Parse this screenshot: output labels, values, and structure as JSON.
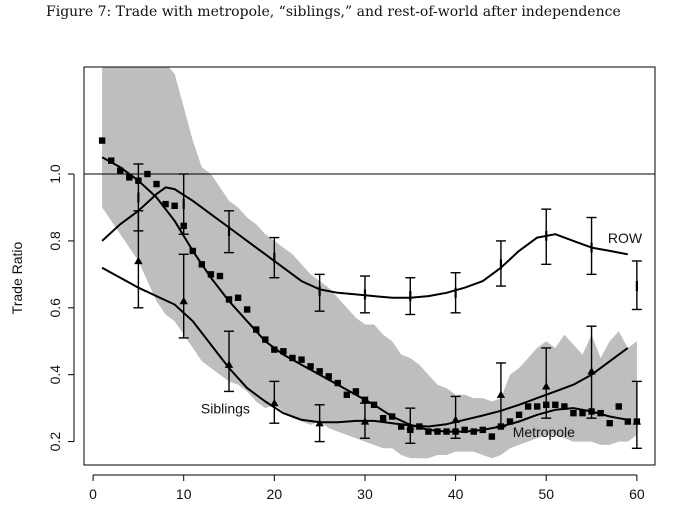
{
  "title": "Figure 7: Trade with metropole, “siblings,” and rest-of-world after independence",
  "chart_data": {
    "type": "line",
    "title": "Figure 7: Trade with metropole, “siblings,” and rest-of-world after independence",
    "xlabel": "",
    "ylabel": "Trade Ratio",
    "xlim": [
      -1,
      62
    ],
    "ylim": [
      0.13,
      1.32
    ],
    "x_ticks": [
      0,
      10,
      20,
      30,
      40,
      50,
      60
    ],
    "y_ticks": [
      0.2,
      0.4,
      0.6,
      0.8,
      1.0
    ],
    "x_tick_labels": [
      "0",
      "10",
      "20",
      "30",
      "40",
      "50",
      "60"
    ],
    "y_tick_labels": [
      "0.2",
      "0.4",
      "0.6",
      "0.8",
      "1.0"
    ],
    "reference_line_y": 1.0,
    "grid": false,
    "band": {
      "color": "#bebebe",
      "x": [
        1,
        2,
        3,
        4,
        5,
        6,
        7,
        8,
        9,
        10,
        11,
        12,
        13,
        14,
        15,
        16,
        17,
        18,
        19,
        20,
        21,
        22,
        23,
        24,
        25,
        26,
        27,
        28,
        29,
        30,
        31,
        32,
        33,
        34,
        35,
        36,
        37,
        38,
        39,
        40,
        41,
        42,
        43,
        44,
        45,
        46,
        47,
        48,
        49,
        50,
        51,
        52,
        53,
        54,
        55,
        56,
        57,
        58,
        59,
        60
      ],
      "upper": [
        1.33,
        1.33,
        1.33,
        1.33,
        1.33,
        1.33,
        1.33,
        1.33,
        1.3,
        1.2,
        1.1,
        1.02,
        1.0,
        0.96,
        0.92,
        0.9,
        0.87,
        0.85,
        0.82,
        0.8,
        0.78,
        0.76,
        0.73,
        0.7,
        0.68,
        0.66,
        0.63,
        0.6,
        0.57,
        0.55,
        0.55,
        0.52,
        0.5,
        0.46,
        0.45,
        0.43,
        0.4,
        0.37,
        0.36,
        0.34,
        0.34,
        0.33,
        0.33,
        0.32,
        0.33,
        0.4,
        0.42,
        0.45,
        0.48,
        0.5,
        0.48,
        0.52,
        0.49,
        0.46,
        0.52,
        0.45,
        0.5,
        0.53,
        0.48,
        0.5
      ],
      "lower": [
        0.9,
        0.86,
        0.82,
        0.78,
        0.74,
        0.68,
        0.62,
        0.58,
        0.56,
        0.52,
        0.48,
        0.44,
        0.42,
        0.4,
        0.38,
        0.37,
        0.35,
        0.32,
        0.3,
        0.31,
        0.29,
        0.27,
        0.26,
        0.25,
        0.26,
        0.24,
        0.23,
        0.22,
        0.21,
        0.2,
        0.19,
        0.18,
        0.18,
        0.16,
        0.15,
        0.15,
        0.15,
        0.16,
        0.16,
        0.17,
        0.17,
        0.17,
        0.16,
        0.15,
        0.16,
        0.18,
        0.19,
        0.2,
        0.21,
        0.22,
        0.22,
        0.21,
        0.2,
        0.2,
        0.2,
        0.19,
        0.19,
        0.2,
        0.2,
        0.22
      ]
    },
    "series": [
      {
        "name": "Metropole",
        "style": "square-markers",
        "x": [
          1,
          2,
          3,
          4,
          5,
          6,
          7,
          8,
          9,
          10,
          11,
          12,
          13,
          14,
          15,
          16,
          17,
          18,
          19,
          20,
          21,
          22,
          23,
          24,
          25,
          26,
          27,
          28,
          29,
          30,
          31,
          32,
          33,
          34,
          35,
          36,
          37,
          38,
          39,
          40,
          41,
          42,
          43,
          44,
          45,
          46,
          47,
          48,
          49,
          50,
          51,
          52,
          53,
          54,
          55,
          56,
          57,
          58,
          59,
          60
        ],
        "values": [
          1.1,
          1.04,
          1.01,
          0.99,
          0.98,
          1.0,
          0.97,
          0.91,
          0.905,
          0.845,
          0.77,
          0.73,
          0.7,
          0.695,
          0.625,
          0.63,
          0.595,
          0.535,
          0.505,
          0.475,
          0.47,
          0.45,
          0.445,
          0.425,
          0.41,
          0.395,
          0.375,
          0.34,
          0.35,
          0.325,
          0.31,
          0.27,
          0.275,
          0.245,
          0.235,
          0.245,
          0.23,
          0.23,
          0.23,
          0.23,
          0.235,
          0.23,
          0.235,
          0.215,
          0.245,
          0.26,
          0.28,
          0.305,
          0.305,
          0.31,
          0.31,
          0.305,
          0.285,
          0.285,
          0.29,
          0.285,
          0.255,
          0.305,
          0.26,
          0.26
        ]
      },
      {
        "name": "Metropole",
        "style": "smooth-line",
        "x": [
          1,
          3,
          5,
          7,
          9,
          11,
          13,
          15,
          17,
          19,
          21,
          23,
          25,
          27,
          29,
          31,
          33,
          35,
          37,
          39,
          41,
          43,
          45,
          47,
          49,
          51,
          53,
          55,
          57,
          59
        ],
        "values": [
          1.05,
          1.02,
          0.98,
          0.93,
          0.86,
          0.77,
          0.69,
          0.62,
          0.56,
          0.5,
          0.46,
          0.43,
          0.4,
          0.37,
          0.34,
          0.31,
          0.275,
          0.25,
          0.235,
          0.23,
          0.23,
          0.235,
          0.245,
          0.26,
          0.28,
          0.295,
          0.3,
          0.29,
          0.275,
          0.265
        ]
      },
      {
        "name": "Siblings",
        "style": "smooth-line",
        "x": [
          1,
          3,
          5,
          7,
          9,
          11,
          13,
          15,
          17,
          19,
          21,
          23,
          25,
          27,
          29,
          31,
          33,
          35,
          37,
          39,
          41,
          43,
          45,
          47,
          49,
          51,
          53,
          55,
          57,
          59
        ],
        "values": [
          0.72,
          0.69,
          0.66,
          0.635,
          0.61,
          0.56,
          0.49,
          0.42,
          0.36,
          0.32,
          0.285,
          0.265,
          0.258,
          0.258,
          0.262,
          0.262,
          0.255,
          0.248,
          0.245,
          0.252,
          0.265,
          0.278,
          0.292,
          0.31,
          0.33,
          0.35,
          0.37,
          0.4,
          0.44,
          0.48
        ]
      },
      {
        "name": "ROW",
        "style": "smooth-line",
        "x": [
          1,
          3,
          5,
          7,
          8,
          9,
          11,
          13,
          15,
          17,
          19,
          21,
          23,
          25,
          27,
          29,
          31,
          33,
          35,
          37,
          39,
          41,
          43,
          45,
          47,
          49,
          51,
          53,
          55,
          57,
          59
        ],
        "values": [
          0.8,
          0.85,
          0.89,
          0.94,
          0.96,
          0.955,
          0.92,
          0.88,
          0.84,
          0.8,
          0.76,
          0.72,
          0.68,
          0.655,
          0.645,
          0.64,
          0.635,
          0.63,
          0.63,
          0.635,
          0.645,
          0.66,
          0.68,
          0.72,
          0.77,
          0.81,
          0.82,
          0.8,
          0.78,
          0.77,
          0.76
        ]
      }
    ],
    "error_bars": [
      {
        "name": "ROW",
        "marker": "tick",
        "x": [
          5,
          10,
          15,
          20,
          25,
          30,
          35,
          40,
          45,
          50,
          55,
          60
        ],
        "center": [
          0.93,
          0.91,
          0.83,
          0.75,
          0.65,
          0.64,
          0.635,
          0.645,
          0.73,
          0.815,
          0.78,
          0.665
        ],
        "low": [
          0.83,
          0.82,
          0.765,
          0.69,
          0.59,
          0.585,
          0.58,
          0.585,
          0.665,
          0.73,
          0.7,
          0.595
        ],
        "high": [
          1.03,
          1.0,
          0.89,
          0.81,
          0.7,
          0.695,
          0.69,
          0.705,
          0.8,
          0.895,
          0.87,
          0.74
        ]
      },
      {
        "name": "Siblings",
        "marker": "triangle",
        "x": [
          5,
          10,
          15,
          20,
          25,
          30,
          35,
          40,
          45,
          50,
          55,
          60
        ],
        "center": [
          0.74,
          0.62,
          0.43,
          0.315,
          0.255,
          0.26,
          0.245,
          0.265,
          0.34,
          0.365,
          0.41,
          0.26
        ],
        "low": [
          0.6,
          0.51,
          0.35,
          0.255,
          0.2,
          0.21,
          0.195,
          0.21,
          0.245,
          0.27,
          0.27,
          0.18
        ],
        "high": [
          0.89,
          0.76,
          0.53,
          0.38,
          0.31,
          0.315,
          0.3,
          0.335,
          0.435,
          0.48,
          0.545,
          0.38
        ]
      }
    ],
    "annotations": [
      {
        "text": "ROW",
        "x": 56.8,
        "y": 0.805
      },
      {
        "text": "Siblings",
        "x": 11.9,
        "y": 0.295
      },
      {
        "text": "Metropole",
        "x": 46.3,
        "y": 0.225
      }
    ]
  }
}
